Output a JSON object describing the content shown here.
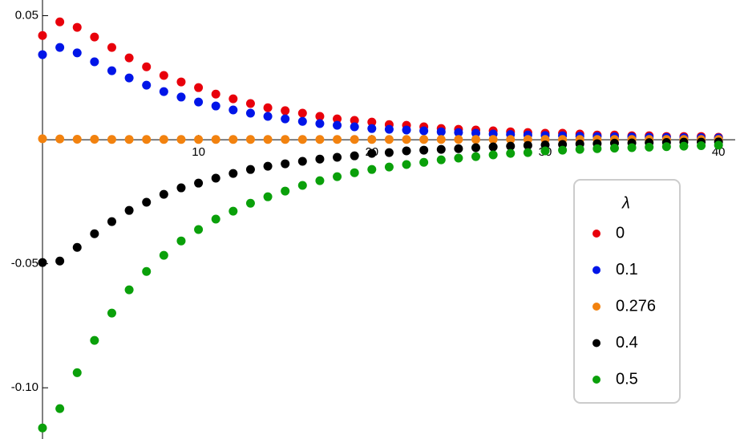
{
  "chart_data": {
    "type": "scatter",
    "x": [
      1,
      2,
      3,
      4,
      5,
      6,
      7,
      8,
      9,
      10,
      11,
      12,
      13,
      14,
      15,
      16,
      17,
      18,
      19,
      20,
      21,
      22,
      23,
      24,
      25,
      26,
      27,
      28,
      29,
      30,
      31,
      32,
      33,
      34,
      35,
      36,
      37,
      38,
      39,
      40
    ],
    "series": [
      {
        "name": "0",
        "color": "#e8000b",
        "values": [
          0.042,
          0.0475,
          0.0453,
          0.0414,
          0.0372,
          0.033,
          0.0294,
          0.0259,
          0.0233,
          0.021,
          0.0184,
          0.0165,
          0.0146,
          0.0129,
          0.0117,
          0.0107,
          0.0094,
          0.0084,
          0.0078,
          0.0071,
          0.0061,
          0.0058,
          0.0052,
          0.0045,
          0.0042,
          0.0039,
          0.0036,
          0.0032,
          0.0029,
          0.0026,
          0.0026,
          0.0023,
          0.0019,
          0.0019,
          0.0016,
          0.0016,
          0.0013,
          0.0013,
          0.0013,
          0.001
        ]
      },
      {
        "name": "0.1",
        "color": "#0015e8",
        "values": [
          0.0343,
          0.0372,
          0.035,
          0.0314,
          0.0278,
          0.0249,
          0.022,
          0.0194,
          0.0172,
          0.0152,
          0.0136,
          0.012,
          0.0107,
          0.0094,
          0.0084,
          0.0074,
          0.0065,
          0.0058,
          0.0052,
          0.0045,
          0.0042,
          0.0039,
          0.0036,
          0.0032,
          0.0029,
          0.0026,
          0.0023,
          0.0021,
          0.0019,
          0.0017,
          0.0016,
          0.0014,
          0.0013,
          0.0012,
          0.0011,
          0.001,
          0.0009,
          0.0008,
          0.0008,
          0.0007
        ]
      },
      {
        "name": "0.276",
        "color": "#f2820f",
        "values": [
          0.0004,
          0.0003,
          0.0002,
          0.0002,
          0.0001,
          0.0001,
          0.0001,
          0.0001,
          0.0001,
          0.0001,
          0.0001,
          0.0001,
          0.0001,
          0.0001,
          0.0001,
          0.0001,
          0.0001,
          0.0001,
          0.0001,
          0.0001,
          0.0001,
          0.0001,
          0.0001,
          0.0001,
          0.0001,
          0.0001,
          0.0001,
          0.0001,
          0.0001,
          0.0001,
          0.0001,
          0.0001,
          0.0001,
          0.0001,
          0.0001,
          0.0001,
          0.0001,
          0.0001,
          0.0001,
          0.0001
        ]
      },
      {
        "name": "0.4",
        "color": "#000000",
        "values": [
          -0.0495,
          -0.0489,
          -0.0434,
          -0.0379,
          -0.033,
          -0.0285,
          -0.0252,
          -0.022,
          -0.0194,
          -0.0175,
          -0.0155,
          -0.0136,
          -0.012,
          -0.0107,
          -0.0097,
          -0.0087,
          -0.0078,
          -0.0071,
          -0.0065,
          -0.0055,
          -0.0052,
          -0.0045,
          -0.0042,
          -0.0039,
          -0.0036,
          -0.0032,
          -0.0029,
          -0.0026,
          -0.0023,
          -0.0021,
          -0.0019,
          -0.0017,
          -0.0016,
          -0.0014,
          -0.0013,
          -0.0012,
          -0.0011,
          -0.001,
          -0.001,
          -0.0009
        ]
      },
      {
        "name": "0.5",
        "color": "#0aa00a",
        "values": [
          -0.1162,
          -0.1084,
          -0.0939,
          -0.0809,
          -0.0699,
          -0.0605,
          -0.0531,
          -0.0466,
          -0.0408,
          -0.0362,
          -0.032,
          -0.0288,
          -0.0256,
          -0.023,
          -0.0207,
          -0.0184,
          -0.0165,
          -0.0149,
          -0.0133,
          -0.012,
          -0.011,
          -0.01,
          -0.0091,
          -0.0081,
          -0.0074,
          -0.0068,
          -0.0061,
          -0.0055,
          -0.0052,
          -0.0045,
          -0.0042,
          -0.0039,
          -0.0036,
          -0.0034,
          -0.0032,
          -0.003,
          -0.0028,
          -0.0026,
          -0.0024,
          -0.0022
        ]
      }
    ],
    "legend_title": "λ",
    "legend_position": "right",
    "xlim": [
      1,
      40.5
    ],
    "ylim": [
      -0.12,
      0.056
    ],
    "xticks": [
      10,
      20,
      30,
      40
    ],
    "yticks": [
      0.05,
      -0.05,
      {
        "value": -0.1,
        "label": "-0.10"
      }
    ]
  }
}
